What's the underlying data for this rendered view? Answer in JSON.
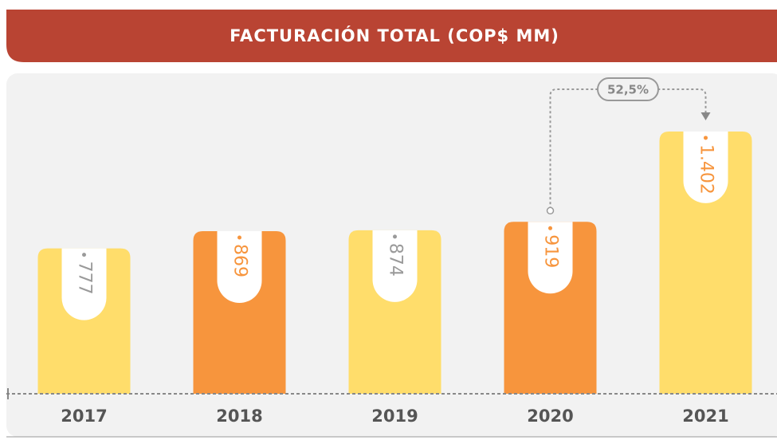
{
  "chart_data": {
    "type": "bar",
    "title": "FACTURACIÓN TOTAL (COP$ MM)",
    "categories": [
      "2017",
      "2018",
      "2019",
      "2020",
      "2021"
    ],
    "values": [
      777,
      869,
      874,
      919,
      1402
    ],
    "value_labels": [
      "777",
      "869",
      "874",
      "919",
      "1.402"
    ],
    "colors": [
      "#FFDD6B",
      "#F7953D",
      "#FFDD6B",
      "#F7953D",
      "#FFDD6B"
    ],
    "label_colors": [
      "#9a9a9a",
      "#F7953D",
      "#9a9a9a",
      "#F7953D",
      "#F7953D"
    ],
    "annotation": "52,5%",
    "ylim": [
      0,
      1700
    ]
  }
}
